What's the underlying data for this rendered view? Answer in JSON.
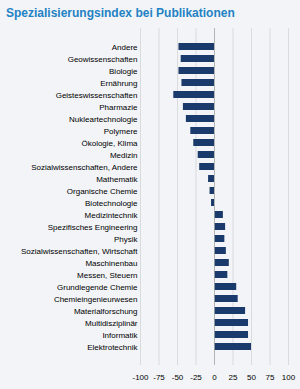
{
  "chart_data": {
    "type": "bar",
    "orientation": "horizontal",
    "title": "Spezialisierungsindex bei Publikationen",
    "categories": [
      "Andere",
      "Geowissenschaften",
      "Biologie",
      "Ernährung",
      "Geisteswissenschaften",
      "Pharmazie",
      "Nukleartechnologie",
      "Polymere",
      "Ökologie, Klima",
      "Medizin",
      "Sozialwissenschaften, Andere",
      "Mathematik",
      "Organische Chemie",
      "Biotechnologie",
      "Medizintechnik",
      "Spezifisches Engineering",
      "Physik",
      "Sozialwissenschaften, Wirtschaft",
      "Maschinenbau",
      "Messen, Steuern",
      "Grundlegende Chemie",
      "Chemieingenieurwesen",
      "Materialforschung",
      "Multidisziplinär",
      "Informatik",
      "Elektrotechnik"
    ],
    "values": [
      -48,
      -45,
      -48,
      -44,
      -55,
      -42,
      -38,
      -32,
      -28,
      -22,
      -20,
      -8,
      -6,
      -4,
      12,
      15,
      14,
      16,
      20,
      18,
      30,
      32,
      42,
      46,
      46,
      50
    ],
    "color": "#1a3a6b",
    "xlim": [
      -100,
      100
    ],
    "xticks": [
      -100,
      -75,
      -50,
      -25,
      0,
      25,
      50,
      75,
      100
    ],
    "grid": true
  }
}
